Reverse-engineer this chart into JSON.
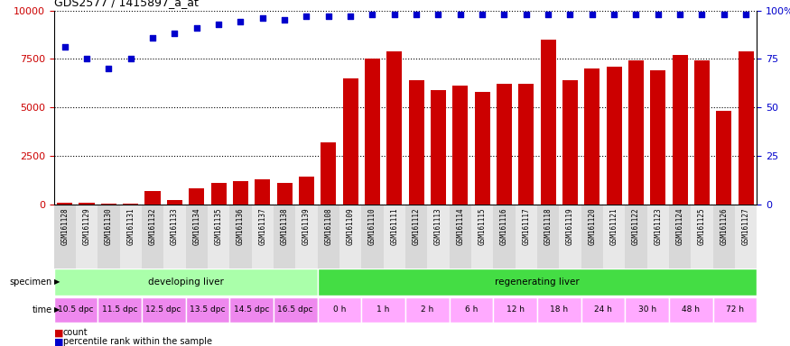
{
  "title": "GDS2577 / 1415897_a_at",
  "samples": [
    "GSM161128",
    "GSM161129",
    "GSM161130",
    "GSM161131",
    "GSM161132",
    "GSM161133",
    "GSM161134",
    "GSM161135",
    "GSM161136",
    "GSM161137",
    "GSM161138",
    "GSM161139",
    "GSM161108",
    "GSM161109",
    "GSM161110",
    "GSM161111",
    "GSM161112",
    "GSM161113",
    "GSM161114",
    "GSM161115",
    "GSM161116",
    "GSM161117",
    "GSM161118",
    "GSM161119",
    "GSM161120",
    "GSM161121",
    "GSM161122",
    "GSM161123",
    "GSM161124",
    "GSM161125",
    "GSM161126",
    "GSM161127"
  ],
  "counts": [
    60,
    50,
    30,
    40,
    700,
    200,
    800,
    1100,
    1200,
    1300,
    1100,
    1400,
    3200,
    6500,
    7500,
    7900,
    6400,
    5900,
    6100,
    5800,
    6200,
    6200,
    8500,
    6400,
    7000,
    7100,
    7400,
    6900,
    7700,
    7400,
    4800,
    7900
  ],
  "percentiles": [
    81,
    75,
    70,
    75,
    86,
    88,
    91,
    93,
    94,
    96,
    95,
    97,
    97,
    97,
    98,
    98,
    98,
    98,
    98,
    98,
    98,
    98,
    98,
    98,
    98,
    98,
    98,
    98,
    98,
    98,
    98,
    98
  ],
  "ylim_left": [
    0,
    10000
  ],
  "ylim_right": [
    0,
    100
  ],
  "yticks_left": [
    0,
    2500,
    5000,
    7500,
    10000
  ],
  "yticks_right": [
    0,
    25,
    50,
    75,
    100
  ],
  "bar_color": "#cc0000",
  "dot_color": "#0000cc",
  "specimen_groups": [
    {
      "label": "developing liver",
      "start": 0,
      "end": 12,
      "color": "#aaffaa"
    },
    {
      "label": "regenerating liver",
      "start": 12,
      "end": 32,
      "color": "#44dd44"
    }
  ],
  "time_labels": [
    {
      "label": "10.5 dpc",
      "start": 0,
      "end": 2,
      "is_dpc": true
    },
    {
      "label": "11.5 dpc",
      "start": 2,
      "end": 4,
      "is_dpc": true
    },
    {
      "label": "12.5 dpc",
      "start": 4,
      "end": 6,
      "is_dpc": true
    },
    {
      "label": "13.5 dpc",
      "start": 6,
      "end": 8,
      "is_dpc": true
    },
    {
      "label": "14.5 dpc",
      "start": 8,
      "end": 10,
      "is_dpc": true
    },
    {
      "label": "16.5 dpc",
      "start": 10,
      "end": 12,
      "is_dpc": true
    },
    {
      "label": "0 h",
      "start": 12,
      "end": 14,
      "is_dpc": false
    },
    {
      "label": "1 h",
      "start": 14,
      "end": 16,
      "is_dpc": false
    },
    {
      "label": "2 h",
      "start": 16,
      "end": 18,
      "is_dpc": false
    },
    {
      "label": "6 h",
      "start": 18,
      "end": 20,
      "is_dpc": false
    },
    {
      "label": "12 h",
      "start": 20,
      "end": 22,
      "is_dpc": false
    },
    {
      "label": "18 h",
      "start": 22,
      "end": 24,
      "is_dpc": false
    },
    {
      "label": "24 h",
      "start": 24,
      "end": 26,
      "is_dpc": false
    },
    {
      "label": "30 h",
      "start": 26,
      "end": 28,
      "is_dpc": false
    },
    {
      "label": "48 h",
      "start": 28,
      "end": 30,
      "is_dpc": false
    },
    {
      "label": "72 h",
      "start": 30,
      "end": 32,
      "is_dpc": false
    }
  ],
  "time_color_dpc": "#ee88ee",
  "time_color_h": "#ffaaff",
  "tick_fontsize": 5.5,
  "axis_fontsize": 8,
  "label_fontsize": 7.5,
  "annotation_fontsize": 7
}
